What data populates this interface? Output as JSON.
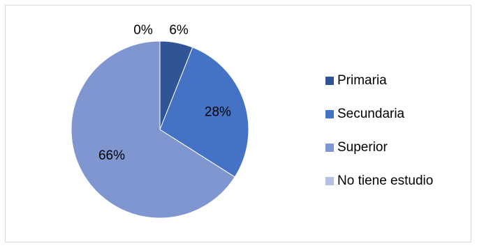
{
  "chart_data": {
    "type": "pie",
    "title": "",
    "categories": [
      "Primaria",
      "Secundaria",
      "Superior",
      "No tiene estudio"
    ],
    "values": [
      6,
      28,
      66,
      0
    ],
    "data_labels": [
      "6%",
      "28%",
      "66%",
      "0%"
    ],
    "colors": [
      "#2f5597",
      "#4472c4",
      "#7f96d1",
      "#b4c0e4"
    ],
    "legend_position": "right",
    "unit": "%"
  }
}
